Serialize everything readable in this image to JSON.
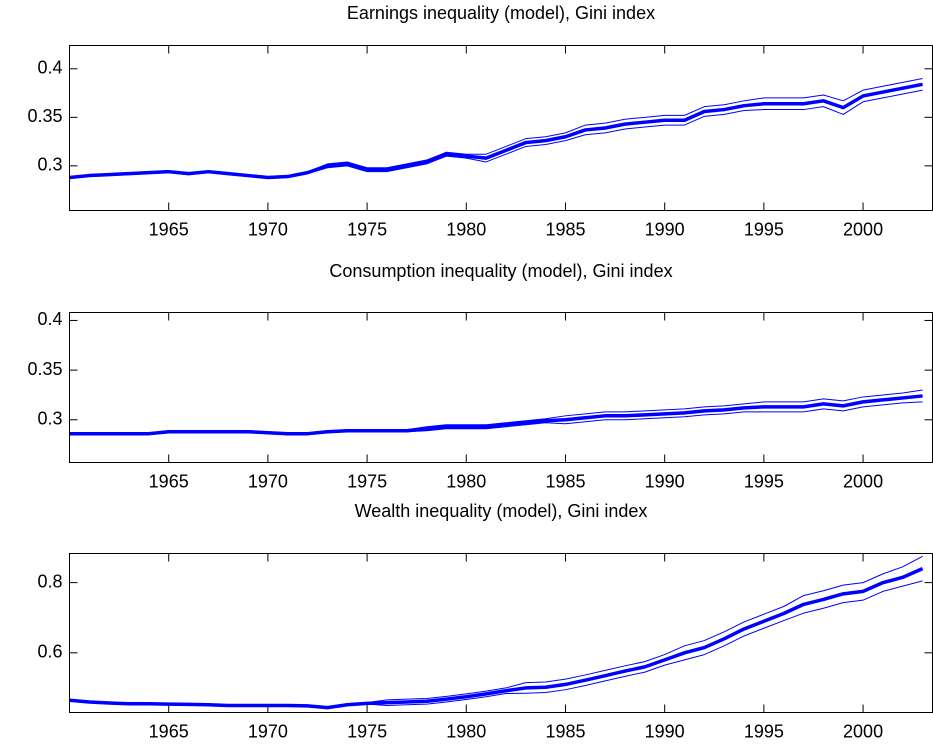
{
  "chart_data": [
    {
      "type": "line",
      "title": "Earnings inequality (model), Gini index",
      "x": [
        1960,
        1961,
        1962,
        1963,
        1964,
        1965,
        1966,
        1967,
        1968,
        1969,
        1970,
        1971,
        1972,
        1973,
        1974,
        1975,
        1976,
        1977,
        1978,
        1979,
        1980,
        1981,
        1982,
        1983,
        1984,
        1985,
        1986,
        1987,
        1988,
        1989,
        1990,
        1991,
        1992,
        1993,
        1994,
        1995,
        1996,
        1997,
        1998,
        1999,
        2000,
        2001,
        2002,
        2003
      ],
      "xlim": [
        1960,
        2003.5
      ],
      "xticks": [
        1965,
        1970,
        1975,
        1980,
        1985,
        1990,
        1995,
        2000
      ],
      "ylim": [
        0.254,
        0.424
      ],
      "yticks": [
        0.3,
        0.35,
        0.4
      ],
      "series": [
        {
          "color": "#0000ff",
          "line_width": 1,
          "values": [
            0.289,
            0.291,
            0.292,
            0.293,
            0.294,
            0.295,
            0.293,
            0.295,
            0.293,
            0.291,
            0.289,
            0.29,
            0.294,
            0.302,
            0.304,
            0.298,
            0.298,
            0.302,
            0.306,
            0.314,
            0.312,
            0.312,
            0.32,
            0.328,
            0.33,
            0.334,
            0.342,
            0.344,
            0.348,
            0.35,
            0.352,
            0.352,
            0.361,
            0.363,
            0.367,
            0.37,
            0.37,
            0.37,
            0.373,
            0.367,
            0.378,
            0.382,
            0.386,
            0.39
          ]
        },
        {
          "color": "#0000ff",
          "line_width": 1,
          "values": [
            0.287,
            0.289,
            0.29,
            0.291,
            0.292,
            0.293,
            0.291,
            0.293,
            0.291,
            0.289,
            0.287,
            0.288,
            0.292,
            0.298,
            0.3,
            0.294,
            0.294,
            0.298,
            0.302,
            0.31,
            0.308,
            0.304,
            0.312,
            0.32,
            0.322,
            0.326,
            0.332,
            0.334,
            0.338,
            0.34,
            0.342,
            0.342,
            0.351,
            0.353,
            0.357,
            0.358,
            0.358,
            0.358,
            0.361,
            0.353,
            0.366,
            0.37,
            0.374,
            0.378
          ]
        },
        {
          "color": "#0000ff",
          "line_width": 3.5,
          "values": [
            0.288,
            0.29,
            0.291,
            0.292,
            0.293,
            0.294,
            0.292,
            0.294,
            0.292,
            0.29,
            0.288,
            0.289,
            0.293,
            0.3,
            0.302,
            0.296,
            0.296,
            0.3,
            0.304,
            0.312,
            0.31,
            0.308,
            0.316,
            0.324,
            0.326,
            0.33,
            0.337,
            0.339,
            0.343,
            0.345,
            0.347,
            0.347,
            0.356,
            0.358,
            0.362,
            0.364,
            0.364,
            0.364,
            0.367,
            0.36,
            0.372,
            0.376,
            0.38,
            0.384
          ]
        }
      ]
    },
    {
      "type": "line",
      "title": "Consumption inequality (model), Gini index",
      "x": [
        1960,
        1961,
        1962,
        1963,
        1964,
        1965,
        1966,
        1967,
        1968,
        1969,
        1970,
        1971,
        1972,
        1973,
        1974,
        1975,
        1976,
        1977,
        1978,
        1979,
        1980,
        1981,
        1982,
        1983,
        1984,
        1985,
        1986,
        1987,
        1988,
        1989,
        1990,
        1991,
        1992,
        1993,
        1994,
        1995,
        1996,
        1997,
        1998,
        1999,
        2000,
        2001,
        2002,
        2003
      ],
      "xlim": [
        1960,
        2003.5
      ],
      "xticks": [
        1965,
        1970,
        1975,
        1980,
        1985,
        1990,
        1995,
        2000
      ],
      "ylim": [
        0.257,
        0.408
      ],
      "yticks": [
        0.3,
        0.35,
        0.4
      ],
      "series": [
        {
          "color": "#0000ff",
          "line_width": 1,
          "values": [
            0.287,
            0.287,
            0.287,
            0.287,
            0.287,
            0.289,
            0.289,
            0.289,
            0.289,
            0.289,
            0.288,
            0.287,
            0.287,
            0.289,
            0.29,
            0.29,
            0.29,
            0.29,
            0.293,
            0.295,
            0.295,
            0.295,
            0.297,
            0.299,
            0.301,
            0.304,
            0.306,
            0.308,
            0.308,
            0.309,
            0.31,
            0.311,
            0.313,
            0.314,
            0.316,
            0.318,
            0.318,
            0.318,
            0.321,
            0.319,
            0.323,
            0.325,
            0.327,
            0.33
          ]
        },
        {
          "color": "#0000ff",
          "line_width": 1,
          "values": [
            0.285,
            0.285,
            0.285,
            0.285,
            0.285,
            0.287,
            0.287,
            0.287,
            0.287,
            0.287,
            0.286,
            0.285,
            0.285,
            0.287,
            0.288,
            0.288,
            0.288,
            0.288,
            0.289,
            0.291,
            0.291,
            0.291,
            0.293,
            0.295,
            0.297,
            0.296,
            0.298,
            0.3,
            0.3,
            0.301,
            0.302,
            0.303,
            0.305,
            0.306,
            0.308,
            0.308,
            0.308,
            0.308,
            0.311,
            0.309,
            0.313,
            0.315,
            0.317,
            0.318
          ]
        },
        {
          "color": "#0000ff",
          "line_width": 3.5,
          "values": [
            0.286,
            0.286,
            0.286,
            0.286,
            0.286,
            0.288,
            0.288,
            0.288,
            0.288,
            0.288,
            0.287,
            0.286,
            0.286,
            0.288,
            0.289,
            0.289,
            0.289,
            0.289,
            0.291,
            0.293,
            0.293,
            0.293,
            0.295,
            0.297,
            0.299,
            0.3,
            0.302,
            0.304,
            0.304,
            0.305,
            0.306,
            0.307,
            0.309,
            0.31,
            0.312,
            0.313,
            0.313,
            0.313,
            0.316,
            0.314,
            0.318,
            0.32,
            0.322,
            0.324
          ]
        }
      ]
    },
    {
      "type": "line",
      "title": "Wealth inequality (model), Gini index",
      "x": [
        1960,
        1961,
        1962,
        1963,
        1964,
        1965,
        1966,
        1967,
        1968,
        1969,
        1970,
        1971,
        1972,
        1973,
        1974,
        1975,
        1976,
        1977,
        1978,
        1979,
        1980,
        1981,
        1982,
        1983,
        1984,
        1985,
        1986,
        1987,
        1988,
        1989,
        1990,
        1991,
        1992,
        1993,
        1994,
        1995,
        1996,
        1997,
        1998,
        1999,
        2000,
        2001,
        2002,
        2003
      ],
      "xlim": [
        1960,
        2003.5
      ],
      "xticks": [
        1965,
        1970,
        1975,
        1980,
        1985,
        1990,
        1995,
        2000
      ],
      "ylim": [
        0.43,
        0.883
      ],
      "yticks": [
        0.6,
        0.8
      ],
      "series": [
        {
          "color": "#0000ff",
          "line_width": 1,
          "values": [
            0.467,
            0.462,
            0.459,
            0.457,
            0.457,
            0.456,
            0.455,
            0.454,
            0.452,
            0.452,
            0.452,
            0.452,
            0.451,
            0.446,
            0.454,
            0.458,
            0.466,
            0.468,
            0.47,
            0.476,
            0.483,
            0.491,
            0.5,
            0.515,
            0.517,
            0.525,
            0.537,
            0.55,
            0.563,
            0.575,
            0.595,
            0.62,
            0.635,
            0.66,
            0.688,
            0.71,
            0.732,
            0.763,
            0.777,
            0.793,
            0.8,
            0.825,
            0.845,
            0.875
          ]
        },
        {
          "color": "#0000ff",
          "line_width": 1,
          "values": [
            0.463,
            0.458,
            0.455,
            0.453,
            0.453,
            0.452,
            0.451,
            0.45,
            0.448,
            0.448,
            0.448,
            0.448,
            0.447,
            0.442,
            0.45,
            0.454,
            0.45,
            0.452,
            0.454,
            0.46,
            0.467,
            0.475,
            0.484,
            0.485,
            0.487,
            0.495,
            0.507,
            0.52,
            0.533,
            0.545,
            0.565,
            0.58,
            0.595,
            0.62,
            0.648,
            0.67,
            0.692,
            0.713,
            0.727,
            0.743,
            0.75,
            0.775,
            0.79,
            0.805
          ]
        },
        {
          "color": "#0000ff",
          "line_width": 3.5,
          "values": [
            0.465,
            0.46,
            0.457,
            0.455,
            0.455,
            0.454,
            0.453,
            0.452,
            0.45,
            0.45,
            0.45,
            0.45,
            0.449,
            0.444,
            0.452,
            0.456,
            0.458,
            0.46,
            0.462,
            0.468,
            0.475,
            0.483,
            0.492,
            0.5,
            0.502,
            0.51,
            0.522,
            0.535,
            0.548,
            0.56,
            0.58,
            0.6,
            0.615,
            0.64,
            0.668,
            0.69,
            0.712,
            0.738,
            0.752,
            0.768,
            0.775,
            0.8,
            0.815,
            0.84
          ]
        }
      ]
    }
  ]
}
